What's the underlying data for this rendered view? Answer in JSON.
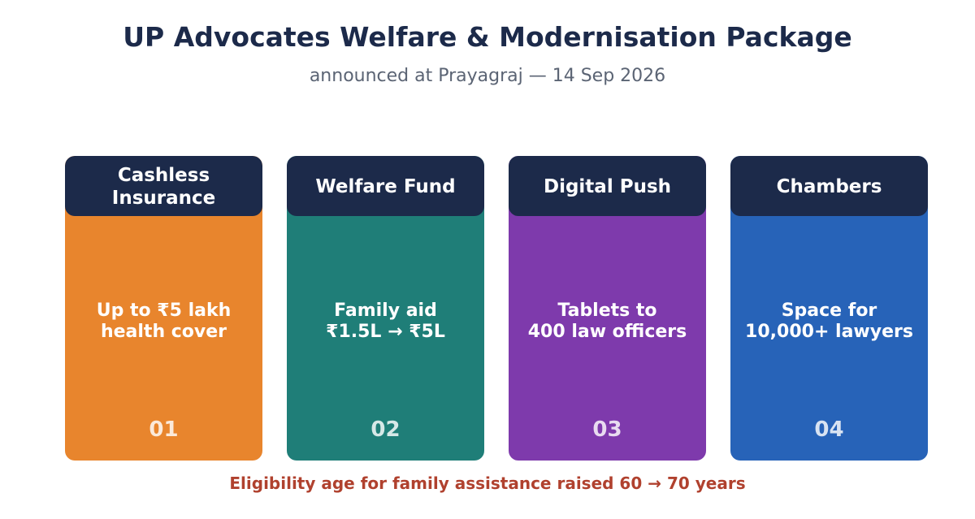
{
  "header": {
    "title": "UP Advocates Welfare & Modernisation Package",
    "subtitle": "announced at Prayagraj — 14 Sep 2026"
  },
  "cards": [
    {
      "title": "Cashless\nInsurance",
      "body": "Up to ₹5 lakh\nhealth cover",
      "number": "01",
      "color": "#e8852d"
    },
    {
      "title": "Welfare Fund",
      "body": "Family aid\n₹1.5L → ₹5L",
      "number": "02",
      "color": "#1f7e78"
    },
    {
      "title": "Digital Push",
      "body": "Tablets to\n400 law officers",
      "number": "03",
      "color": "#7e3aac"
    },
    {
      "title": "Chambers",
      "body": "Space for\n10,000+ lawyers",
      "number": "04",
      "color": "#2763b8"
    }
  ],
  "footer": {
    "note": "Eligibility age for family assistance raised 60 → 70 years"
  },
  "colors": {
    "header_bg": "#1c2a4a",
    "footer_text": "#b0412e"
  }
}
